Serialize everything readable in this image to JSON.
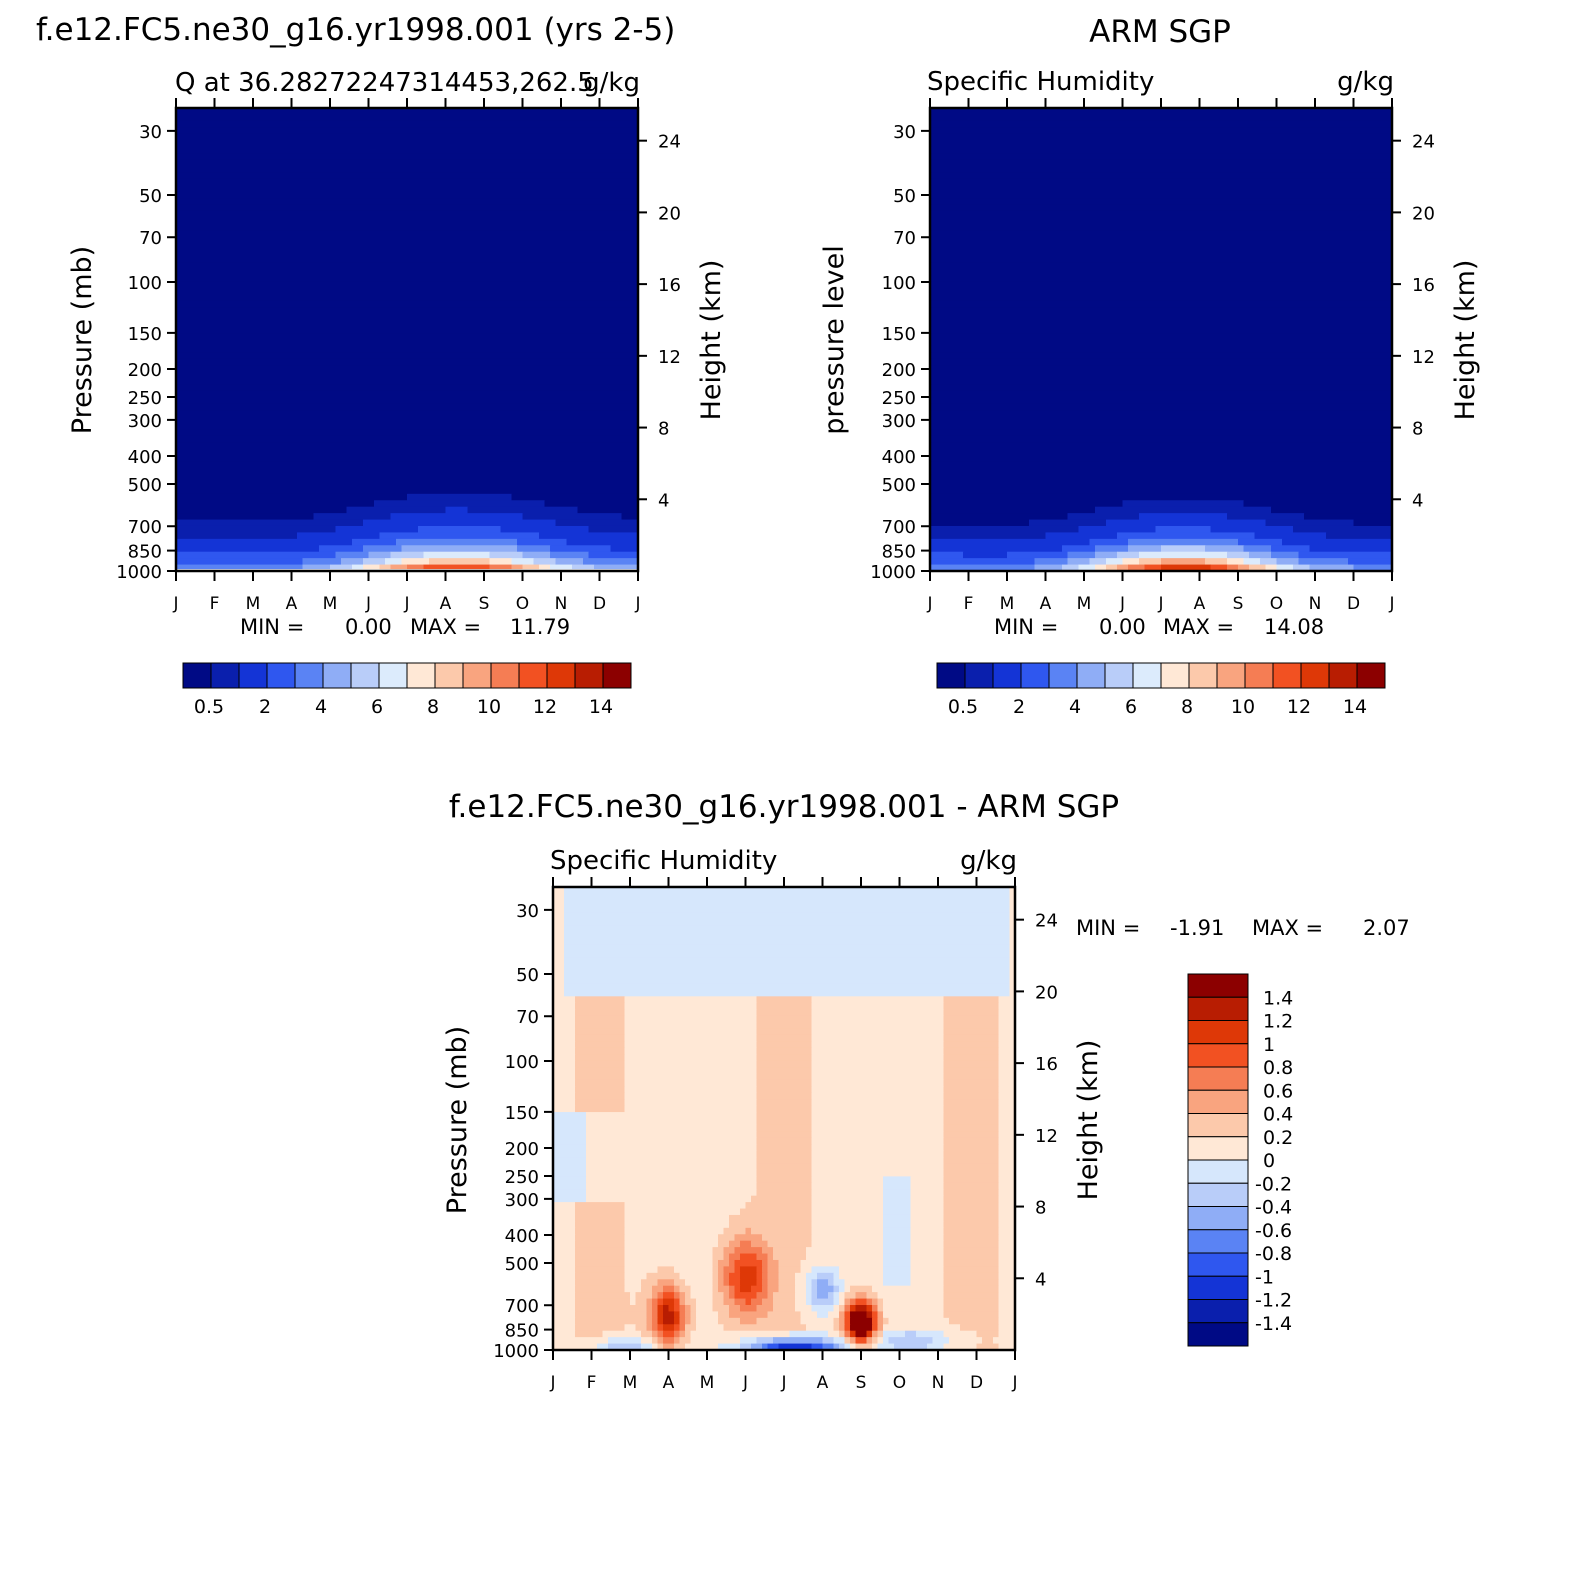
{
  "colors": {
    "abs_palette": [
      "#000a85",
      "#0a1fad",
      "#1434d6",
      "#2f57ef",
      "#5a83f4",
      "#8fadf6",
      "#b9cdf9",
      "#dcebfc",
      "#ffe8d6",
      "#fcc9ab",
      "#f9a47f",
      "#f57d54",
      "#f25122",
      "#de3807",
      "#b81d02",
      "#8c0000"
    ],
    "diff_palette": [
      "#000a85",
      "#0a1fad",
      "#1434d6",
      "#2f57ef",
      "#5a83f4",
      "#8fadf6",
      "#b9cdf9",
      "#d6e7fc",
      "#ffe8d6",
      "#fcc9ab",
      "#f9a47f",
      "#f57d54",
      "#f25122",
      "#de3807",
      "#b81d02",
      "#8c0000"
    ]
  },
  "panels": {
    "model": {
      "main_title": "f.e12.FC5.ne30_g16.yr1998.001 (yrs 2-5)",
      "left_title": "Q at 36.28272247314453,262.5",
      "right_title": "g/kg",
      "ylabel": "Pressure (mb)",
      "ylabel_right": "Height (km)",
      "min_label": "MIN =",
      "min_value": "0.00",
      "max_label": "MAX =",
      "max_value": "11.79"
    },
    "obs": {
      "main_title": "ARM SGP",
      "left_title": "Specific Humidity",
      "right_title": "g/kg",
      "ylabel": "pressure level",
      "ylabel_right": "Height (km)",
      "min_label": "MIN =",
      "min_value": "0.00",
      "max_label": "MAX =",
      "max_value": "14.08"
    },
    "diff": {
      "main_title": "f.e12.FC5.ne30_g16.yr1998.001 - ARM SGP",
      "left_title": "Specific Humidity",
      "right_title": "g/kg",
      "ylabel": "Pressure (mb)",
      "ylabel_right": "Height (km)",
      "min_label": "MIN =",
      "min_value": "-1.91",
      "max_label": "MAX =",
      "max_value": "2.07"
    }
  },
  "colorbars": {
    "abs_labels": [
      "0.5",
      "2",
      "4",
      "6",
      "8",
      "10",
      "12",
      "14"
    ],
    "diff_labels": [
      "1.4",
      "1.2",
      "1",
      "0.8",
      "0.6",
      "0.4",
      "0.2",
      "0",
      "-0.2",
      "-0.4",
      "-0.6",
      "-0.8",
      "-1",
      "-1.2",
      "-1.4"
    ]
  },
  "chart_data": [
    {
      "type": "heatmap",
      "title": "f.e12.FC5.ne30_g16.yr1998.001 (yrs 2-5)",
      "subtitle": "Q at 36.28272247314453,262.5",
      "units": "g/kg",
      "xlabel": "",
      "ylabel": "Pressure (mb)",
      "ylabel_right": "Height (km)",
      "x_ticks": [
        "J",
        "F",
        "M",
        "A",
        "M",
        "J",
        "J",
        "A",
        "S",
        "O",
        "N",
        "D",
        "J"
      ],
      "y_ticks": [
        30,
        50,
        70,
        100,
        150,
        200,
        250,
        300,
        400,
        500,
        700,
        850,
        1000
      ],
      "y_ticks_right": [
        24,
        20,
        16,
        12,
        8,
        4
      ],
      "y_scale": "log",
      "ylim": [
        1000,
        25
      ],
      "contour_levels": [
        0.5,
        1,
        2,
        3,
        4,
        5,
        6,
        7,
        8,
        9,
        10,
        11,
        12,
        13,
        14
      ],
      "min": 0.0,
      "max": 11.79,
      "peak": {
        "month": 7.5,
        "pressure": 960
      },
      "grid": false
    },
    {
      "type": "heatmap",
      "title": "ARM SGP",
      "subtitle": "Specific Humidity",
      "units": "g/kg",
      "xlabel": "",
      "ylabel": "pressure level",
      "ylabel_right": "Height (km)",
      "x_ticks": [
        "J",
        "F",
        "M",
        "A",
        "M",
        "J",
        "J",
        "A",
        "S",
        "O",
        "N",
        "D",
        "J"
      ],
      "y_ticks": [
        30,
        50,
        70,
        100,
        150,
        200,
        250,
        300,
        400,
        500,
        700,
        850,
        1000
      ],
      "y_ticks_right": [
        24,
        20,
        16,
        12,
        8,
        4
      ],
      "y_scale": "log",
      "ylim": [
        1000,
        25
      ],
      "contour_levels": [
        0.5,
        1,
        2,
        3,
        4,
        5,
        6,
        7,
        8,
        9,
        10,
        11,
        12,
        13,
        14
      ],
      "min": 0.0,
      "max": 14.08,
      "peak": {
        "month": 6.6,
        "pressure": 990
      },
      "grid": false
    },
    {
      "type": "heatmap",
      "title": "f.e12.FC5.ne30_g16.yr1998.001 - ARM SGP",
      "subtitle": "Specific Humidity",
      "units": "g/kg",
      "xlabel": "",
      "ylabel": "Pressure (mb)",
      "ylabel_right": "Height (km)",
      "x_ticks": [
        "J",
        "F",
        "M",
        "A",
        "M",
        "J",
        "J",
        "A",
        "S",
        "O",
        "N",
        "D",
        "J"
      ],
      "y_ticks": [
        30,
        50,
        70,
        100,
        150,
        200,
        250,
        300,
        400,
        500,
        700,
        850,
        1000
      ],
      "y_ticks_right": [
        24,
        20,
        16,
        12,
        8,
        4
      ],
      "y_scale": "log",
      "ylim": [
        1000,
        25
      ],
      "contour_levels": [
        -1.4,
        -1.2,
        -1,
        -0.8,
        -0.6,
        -0.4,
        -0.2,
        0,
        0.2,
        0.4,
        0.6,
        0.8,
        1,
        1.2,
        1.4
      ],
      "min": -1.91,
      "max": 2.07,
      "features": [
        {
          "kind": "max",
          "month": 8,
          "pressure": 800,
          "value": 2.07
        },
        {
          "kind": "positive",
          "month": 3,
          "pressure": 760,
          "value": 1.0
        },
        {
          "kind": "positive",
          "month": 5,
          "pressure": 560,
          "value": 0.9
        },
        {
          "kind": "negative",
          "month": 6.5,
          "pressure": 920,
          "value": -1.91
        },
        {
          "kind": "negative",
          "month": 7,
          "pressure": 600,
          "value": -0.8
        }
      ],
      "grid": false
    }
  ]
}
